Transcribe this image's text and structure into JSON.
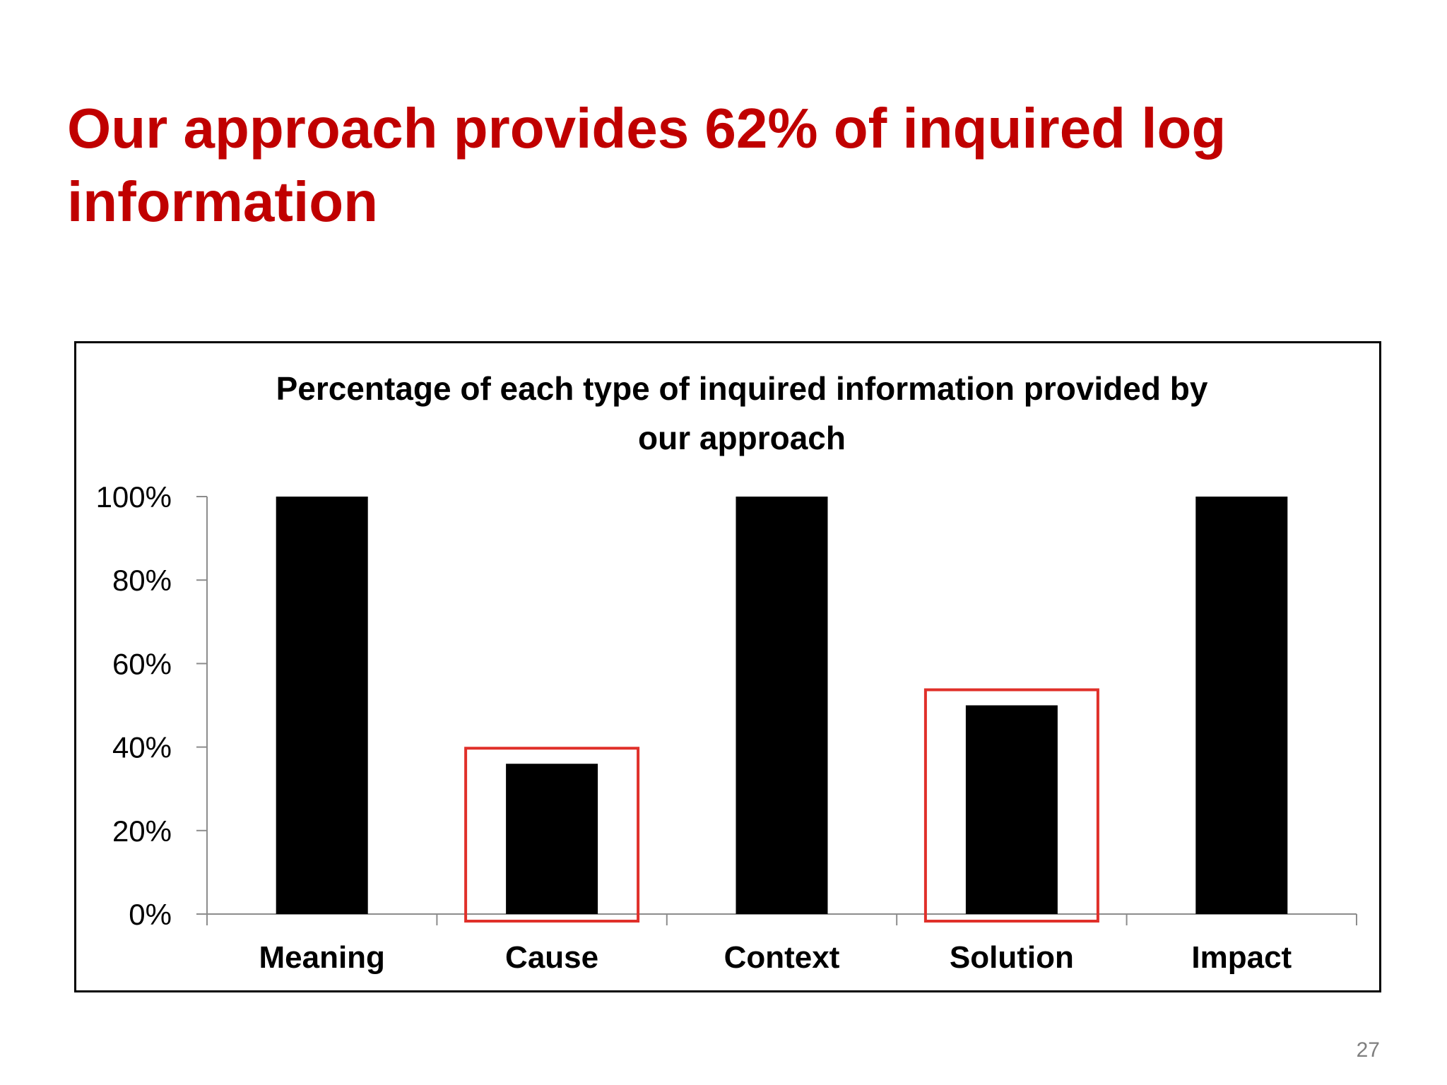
{
  "slide": {
    "title": "Our approach provides 62% of inquired log information",
    "page_number": "27"
  },
  "colors": {
    "title": "#c00000",
    "bar": "#000000",
    "highlight": "#e0302a",
    "axis": "#8c8c8c"
  },
  "chart_data": {
    "type": "bar",
    "title_lines": [
      "Percentage of each type of inquired information provided by",
      "our approach"
    ],
    "categories": [
      "Meaning",
      "Cause",
      "Context",
      "Solution",
      "Impact"
    ],
    "values": [
      100,
      36,
      100,
      50,
      100
    ],
    "highlighted": [
      "Cause",
      "Solution"
    ],
    "y_ticks": [
      "0%",
      "20%",
      "40%",
      "60%",
      "80%",
      "100%"
    ],
    "ylim": [
      0,
      100
    ],
    "grid": false,
    "legend": "none"
  }
}
